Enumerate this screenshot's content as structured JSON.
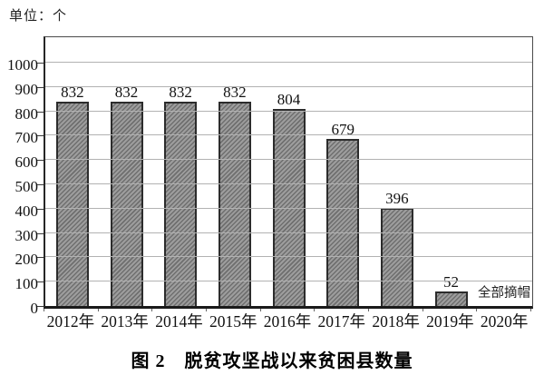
{
  "page": {
    "unit_label": "单位：个",
    "caption": "图 2　脱贫攻坚战以来贫困县数量"
  },
  "chart_data": {
    "type": "bar",
    "title": "图 2　脱贫攻坚战以来贫困县数量",
    "unit_label": "单位：个",
    "categories": [
      "2012年",
      "2013年",
      "2014年",
      "2015年",
      "2016年",
      "2017年",
      "2018年",
      "2019年",
      "2020年"
    ],
    "values": [
      832,
      832,
      832,
      832,
      804,
      679,
      396,
      52,
      0
    ],
    "bar_labels": [
      "832",
      "832",
      "832",
      "832",
      "804",
      "679",
      "396",
      "52",
      ""
    ],
    "annotations": [
      {
        "category": "2020年",
        "text": "全部摘帽"
      }
    ],
    "xlabel": "",
    "ylabel": "",
    "ylim": [
      0,
      1000
    ],
    "yticks": [
      0,
      100,
      200,
      300,
      400,
      500,
      600,
      700,
      800,
      900,
      1000
    ],
    "grid": "horizontal",
    "legend": "none",
    "bar_fill_color": "#9d9d9d",
    "bar_hatch_color": "#6f6f6f",
    "bar_hatch": "diagonal",
    "bar_border_color": "#2c2c2c",
    "gridline_color": "#b2b2b2"
  }
}
